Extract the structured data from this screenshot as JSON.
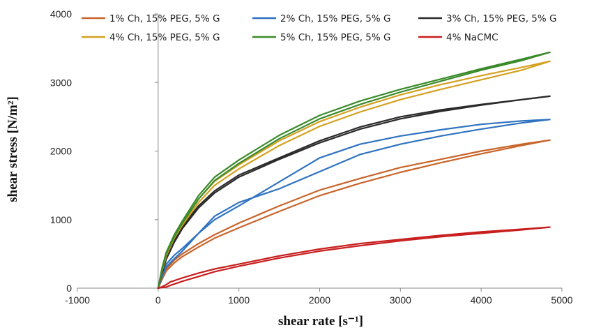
{
  "chart_data": {
    "type": "line",
    "xlabel": "shear rate [s⁻¹]",
    "ylabel": "shear stress [N/m²]",
    "xlim": [
      -1000,
      5000
    ],
    "ylim": [
      0,
      4000
    ],
    "x_ticks": [
      "-1000",
      "0",
      "1000",
      "2000",
      "3000",
      "4000",
      "5000"
    ],
    "y_ticks": [
      "0",
      "1000",
      "2000",
      "3000",
      "4000"
    ],
    "grid": false,
    "legend_position": "top",
    "series": [
      {
        "name": "1% Ch, 15% PEG, 5% G",
        "color": "#c8642a",
        "branches": [
          {
            "x": [
              0,
              50,
              100,
              200,
              300,
              500,
              700,
              1000,
              1500,
              2000,
              2500,
              3000,
              3500,
              4000,
              4500,
              4850
            ],
            "y": [
              0,
              150,
              280,
              410,
              500,
              650,
              780,
              950,
              1200,
              1430,
              1600,
              1760,
              1880,
              2000,
              2100,
              2160
            ]
          },
          {
            "x": [
              0,
              50,
              100,
              200,
              300,
              500,
              700,
              1000,
              1500,
              2000,
              2500,
              3000,
              3500,
              4000,
              4500,
              4850
            ],
            "y": [
              0,
              130,
              250,
              370,
              460,
              600,
              730,
              880,
              1120,
              1350,
              1530,
              1690,
              1830,
              1960,
              2080,
              2160
            ]
          }
        ]
      },
      {
        "name": "2% Ch, 15% PEG, 5% G",
        "color": "#2f72c0",
        "branches": [
          {
            "x": [
              0,
              50,
              100,
              200,
              300,
              500,
              700,
              1000,
              1500,
              2000,
              2500,
              3000,
              3500,
              4000,
              4500,
              4850
            ],
            "y": [
              0,
              200,
              350,
              480,
              580,
              800,
              1000,
              1200,
              1550,
              1900,
              2100,
              2220,
              2310,
              2390,
              2440,
              2460
            ]
          },
          {
            "x": [
              0,
              50,
              100,
              200,
              300,
              500,
              700,
              1000,
              1500,
              2000,
              2500,
              3000,
              3500,
              4000,
              4500,
              4850
            ],
            "y": [
              0,
              170,
              310,
              430,
              540,
              800,
              1050,
              1250,
              1450,
              1700,
              1950,
              2100,
              2220,
              2320,
              2410,
              2460
            ]
          }
        ]
      },
      {
        "name": "3% Ch, 15% PEG, 5% G",
        "color": "#2a2a2a",
        "branches": [
          {
            "x": [
              0,
              50,
              100,
              200,
              300,
              500,
              700,
              1000,
              1500,
              2000,
              2500,
              3000,
              3500,
              4000,
              4500,
              4850
            ],
            "y": [
              0,
              250,
              450,
              700,
              900,
              1200,
              1420,
              1650,
              1900,
              2150,
              2350,
              2500,
              2600,
              2680,
              2750,
              2800
            ]
          },
          {
            "x": [
              0,
              50,
              100,
              200,
              300,
              500,
              700,
              1000,
              1500,
              2000,
              2500,
              3000,
              3500,
              4000,
              4500,
              4850
            ],
            "y": [
              0,
              230,
              420,
              670,
              870,
              1170,
              1390,
              1620,
              1880,
              2120,
              2320,
              2470,
              2580,
              2670,
              2750,
              2800
            ]
          }
        ]
      },
      {
        "name": "4% Ch, 15% PEG, 5% G",
        "color": "#d4a020",
        "branches": [
          {
            "x": [
              0,
              50,
              100,
              200,
              300,
              500,
              700,
              1000,
              1500,
              2000,
              2500,
              3000,
              3500,
              4000,
              4500,
              4850
            ],
            "y": [
              0,
              280,
              500,
              760,
              950,
              1300,
              1560,
              1800,
              2150,
              2430,
              2640,
              2820,
              2970,
              3100,
              3220,
              3310
            ]
          },
          {
            "x": [
              0,
              50,
              100,
              200,
              300,
              500,
              700,
              1000,
              1500,
              2000,
              2500,
              3000,
              3500,
              4000,
              4500,
              4850
            ],
            "y": [
              0,
              260,
              470,
              730,
              920,
              1250,
              1500,
              1740,
              2080,
              2360,
              2570,
              2750,
              2900,
              3040,
              3180,
              3310
            ]
          }
        ]
      },
      {
        "name": "5% Ch, 15% PEG, 5% G",
        "color": "#3a8a2a",
        "branches": [
          {
            "x": [
              0,
              50,
              100,
              200,
              300,
              500,
              700,
              1000,
              1500,
              2000,
              2500,
              3000,
              3500,
              4000,
              4500,
              4850
            ],
            "y": [
              0,
              300,
              520,
              780,
              980,
              1350,
              1620,
              1870,
              2230,
              2520,
              2730,
              2900,
              3050,
              3200,
              3340,
              3440
            ]
          },
          {
            "x": [
              0,
              50,
              100,
              200,
              300,
              500,
              700,
              1000,
              1500,
              2000,
              2500,
              3000,
              3500,
              4000,
              4500,
              4850
            ],
            "y": [
              0,
              280,
              500,
              750,
              950,
              1300,
              1570,
              1820,
              2180,
              2470,
              2680,
              2860,
              3020,
              3180,
              3320,
              3440
            ]
          }
        ]
      },
      {
        "name": "4% NaCMC",
        "color": "#c81e1e",
        "branches": [
          {
            "x": [
              0,
              50,
              100,
              150,
              300,
              500,
              700,
              1000,
              1500,
              2000,
              2500,
              3000,
              3500,
              4000,
              4500,
              4850
            ],
            "y": [
              0,
              20,
              50,
              90,
              150,
              220,
              280,
              350,
              470,
              570,
              650,
              710,
              770,
              820,
              860,
              890
            ]
          },
          {
            "x": [
              0,
              50,
              100,
              150,
              300,
              500,
              700,
              1000,
              1500,
              2000,
              2500,
              3000,
              3500,
              4000,
              4500,
              4850
            ],
            "y": [
              0,
              10,
              15,
              40,
              100,
              170,
              240,
              320,
              440,
              540,
              620,
              690,
              750,
              800,
              850,
              890
            ]
          }
        ]
      }
    ]
  }
}
